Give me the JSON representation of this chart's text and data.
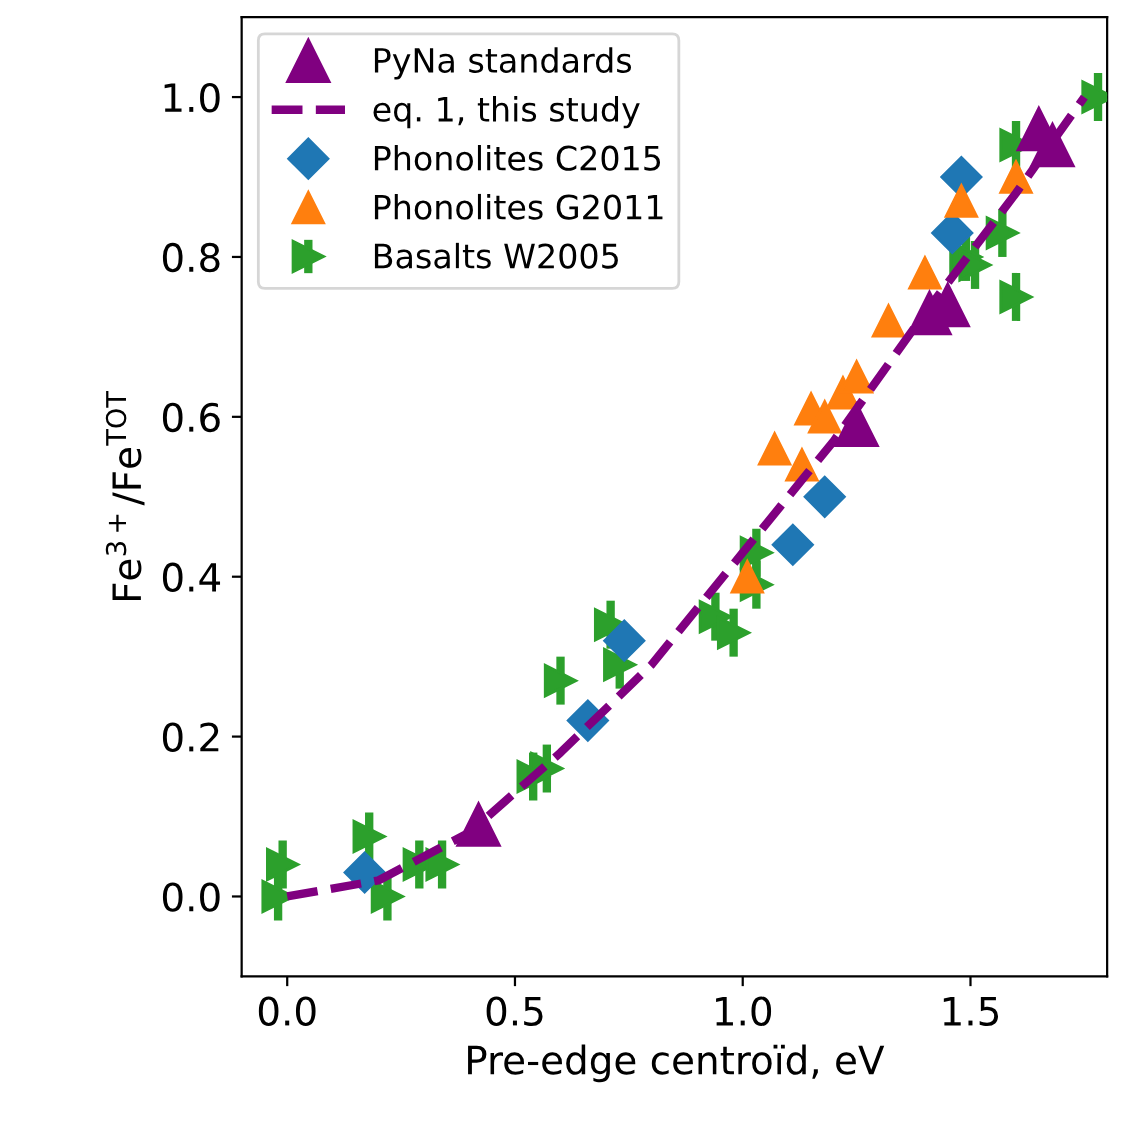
{
  "chart_data": {
    "type": "scatter",
    "xlabel": "Pre-edge centroïd, eV",
    "ylabel": "Fe$^{3+}$/Fe$^{TOT}$",
    "xlim": [
      -0.1,
      1.8
    ],
    "ylim": [
      -0.1,
      1.1
    ],
    "xticks": [
      {
        "value": 0,
        "label": "0.0"
      },
      0.5,
      {
        "value": 1,
        "label": "1.0"
      },
      1.5
    ],
    "yticks": [
      {
        "value": 0,
        "label": "0.0"
      },
      0.2,
      0.4,
      0.6,
      0.8,
      {
        "value": 1,
        "label": "1.0"
      }
    ],
    "legend": "top left",
    "grid": false,
    "series": [
      {
        "name": "PyNa standards",
        "marker": "triangle",
        "color": "#800080",
        "x": [
          0.42,
          1.25,
          1.41,
          1.45,
          1.65,
          1.68
        ],
        "values": [
          0.09,
          0.59,
          0.73,
          0.74,
          0.96,
          0.94
        ]
      },
      {
        "name": "eq. 1, this study",
        "type": "line",
        "line_style": "dashed",
        "marker": "none",
        "color": "#800080",
        "x": [
          0.0,
          0.2,
          0.4,
          0.6,
          0.8,
          1.0,
          1.2,
          1.4,
          1.6,
          1.75
        ],
        "values": [
          0.0,
          0.02,
          0.08,
          0.18,
          0.29,
          0.43,
          0.57,
          0.73,
          0.88,
          1.0
        ]
      },
      {
        "name": "Phonolites C2015",
        "marker": "diamond",
        "color": "#1f77b4",
        "x": [
          0.17,
          0.66,
          0.74,
          1.11,
          1.18,
          1.46,
          1.48
        ],
        "values": [
          0.03,
          0.22,
          0.32,
          0.44,
          0.5,
          0.83,
          0.9
        ]
      },
      {
        "name": "Phonolites G2011",
        "marker": "triangle",
        "color": "#ff7f0e",
        "x": [
          1.01,
          1.07,
          1.13,
          1.15,
          1.18,
          1.22,
          1.25,
          1.32,
          1.4,
          1.48,
          1.6
        ],
        "values": [
          0.4,
          0.56,
          0.54,
          0.61,
          0.6,
          0.63,
          0.65,
          0.72,
          0.78,
          0.87,
          0.9
        ]
      },
      {
        "name": "Basalts W2005",
        "marker": "triangle-right",
        "color": "#2ca02c",
        "x": [
          -0.01,
          -0.02,
          0.18,
          0.22,
          0.29,
          0.34,
          0.54,
          0.57,
          0.6,
          0.71,
          0.73,
          0.94,
          0.98,
          1.03,
          1.03,
          1.49,
          1.51,
          1.57,
          1.6,
          1.6,
          1.78
        ],
        "values": [
          0.04,
          0.0,
          0.075,
          0.0,
          0.04,
          0.04,
          0.15,
          0.16,
          0.27,
          0.34,
          0.29,
          0.35,
          0.33,
          0.39,
          0.43,
          0.8,
          0.79,
          0.83,
          0.94,
          0.75,
          1.0
        ],
        "errors": [
          0.03,
          0.03,
          0.03,
          0.03,
          0.03,
          0.03,
          0.03,
          0.03,
          0.03,
          0.03,
          0.03,
          0.03,
          0.03,
          0.03,
          0.03,
          0.03,
          0.03,
          0.03,
          0.03,
          0.03,
          0.03
        ]
      }
    ]
  }
}
